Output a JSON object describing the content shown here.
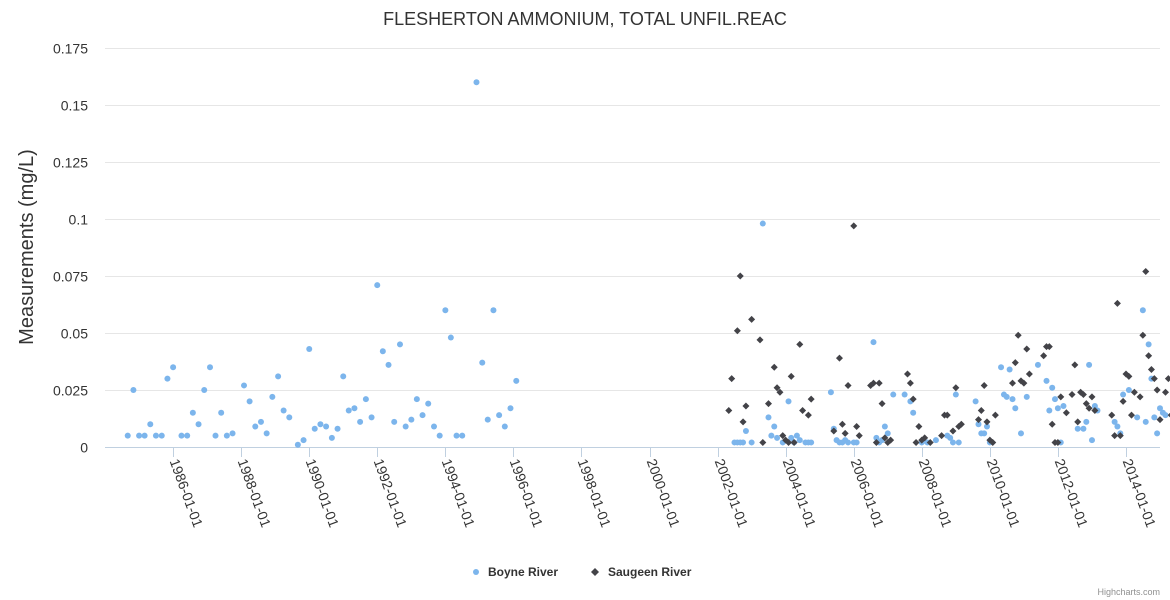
{
  "chart_data": {
    "type": "scatter",
    "title": "FLESHERTON AMMONIUM, TOTAL UNFIL.REAC",
    "ylabel": "Measurements (mg/L)",
    "xlabel": "",
    "x_type": "date",
    "xlim": [
      "1984-01-01",
      "2015-01-01"
    ],
    "ylim": [
      0,
      0.175
    ],
    "yticks": [
      {
        "value": 0,
        "label": "0"
      },
      {
        "value": 0.025,
        "label": "0.025"
      },
      {
        "value": 0.05,
        "label": "0.05"
      },
      {
        "value": 0.075,
        "label": "0.075"
      },
      {
        "value": 0.1,
        "label": "0.1"
      },
      {
        "value": 0.125,
        "label": "0.125"
      },
      {
        "value": 0.15,
        "label": "0.15"
      },
      {
        "value": 0.175,
        "label": "0.175"
      }
    ],
    "xticks": [
      "1986-01-01",
      "1988-01-01",
      "1990-01-01",
      "1992-01-01",
      "1994-01-01",
      "1996-01-01",
      "1998-01-01",
      "2000-01-01",
      "2002-01-01",
      "2004-01-01",
      "2006-01-01",
      "2008-01-01",
      "2010-01-01",
      "2012-01-01",
      "2014-01-01"
    ],
    "grid": true,
    "legend_position": "bottom-center",
    "series": [
      {
        "name": "Boyne River",
        "color": "#7cb5ec",
        "marker": "circle",
        "points": [
          [
            "1984-09-01",
            0.005
          ],
          [
            "1984-11-01",
            0.025
          ],
          [
            "1985-01-01",
            0.005
          ],
          [
            "1985-03-01",
            0.005
          ],
          [
            "1985-05-01",
            0.01
          ],
          [
            "1985-07-01",
            0.005
          ],
          [
            "1985-09-01",
            0.005
          ],
          [
            "1985-11-01",
            0.03
          ],
          [
            "1986-01-01",
            0.035
          ],
          [
            "1986-04-01",
            0.005
          ],
          [
            "1986-06-01",
            0.005
          ],
          [
            "1986-08-01",
            0.015
          ],
          [
            "1986-10-01",
            0.01
          ],
          [
            "1986-12-01",
            0.025
          ],
          [
            "1987-02-01",
            0.035
          ],
          [
            "1987-04-01",
            0.005
          ],
          [
            "1987-06-01",
            0.015
          ],
          [
            "1987-08-01",
            0.005
          ],
          [
            "1987-10-01",
            0.006
          ],
          [
            "1988-02-01",
            0.027
          ],
          [
            "1988-04-01",
            0.02
          ],
          [
            "1988-06-01",
            0.009
          ],
          [
            "1988-08-01",
            0.011
          ],
          [
            "1988-10-01",
            0.006
          ],
          [
            "1988-12-01",
            0.022
          ],
          [
            "1989-02-01",
            0.031
          ],
          [
            "1989-04-01",
            0.016
          ],
          [
            "1989-06-01",
            0.013
          ],
          [
            "1989-09-01",
            0.001
          ],
          [
            "1989-11-01",
            0.003
          ],
          [
            "1990-01-01",
            0.043
          ],
          [
            "1990-03-01",
            0.008
          ],
          [
            "1990-05-01",
            0.01
          ],
          [
            "1990-07-01",
            0.009
          ],
          [
            "1990-09-01",
            0.004
          ],
          [
            "1990-11-01",
            0.008
          ],
          [
            "1991-01-01",
            0.031
          ],
          [
            "1991-03-01",
            0.016
          ],
          [
            "1991-05-01",
            0.017
          ],
          [
            "1991-07-01",
            0.011
          ],
          [
            "1991-09-01",
            0.021
          ],
          [
            "1991-11-01",
            0.013
          ],
          [
            "1992-01-01",
            0.071
          ],
          [
            "1992-03-01",
            0.042
          ],
          [
            "1992-05-01",
            0.036
          ],
          [
            "1992-07-01",
            0.011
          ],
          [
            "1992-09-01",
            0.045
          ],
          [
            "1992-11-01",
            0.009
          ],
          [
            "1993-01-01",
            0.012
          ],
          [
            "1993-03-01",
            0.021
          ],
          [
            "1993-05-01",
            0.014
          ],
          [
            "1993-07-01",
            0.019
          ],
          [
            "1993-09-01",
            0.009
          ],
          [
            "1993-11-01",
            0.005
          ],
          [
            "1994-01-01",
            0.06
          ],
          [
            "1994-03-01",
            0.048
          ],
          [
            "1994-05-01",
            0.005
          ],
          [
            "1994-07-01",
            0.005
          ],
          [
            "1994-12-01",
            0.16
          ],
          [
            "1995-02-01",
            0.037
          ],
          [
            "1995-04-01",
            0.012
          ],
          [
            "1995-06-01",
            0.06
          ],
          [
            "1995-08-01",
            0.014
          ],
          [
            "1995-10-01",
            0.009
          ],
          [
            "1995-12-01",
            0.017
          ],
          [
            "1996-02-01",
            0.029
          ],
          [
            "2002-07-01",
            0.002
          ],
          [
            "2002-08-01",
            0.002
          ],
          [
            "2002-09-01",
            0.002
          ],
          [
            "2002-10-01",
            0.002
          ],
          [
            "2002-11-01",
            0.007
          ],
          [
            "2003-01-01",
            0.002
          ],
          [
            "2003-05-01",
            0.098
          ],
          [
            "2003-07-01",
            0.013
          ],
          [
            "2003-08-01",
            0.005
          ],
          [
            "2003-09-01",
            0.009
          ],
          [
            "2003-10-01",
            0.004
          ],
          [
            "2003-12-01",
            0.002
          ],
          [
            "2004-02-01",
            0.02
          ],
          [
            "2004-03-01",
            0.004
          ],
          [
            "2004-04-01",
            0.002
          ],
          [
            "2004-05-01",
            0.005
          ],
          [
            "2004-06-01",
            0.003
          ],
          [
            "2004-08-01",
            0.002
          ],
          [
            "2004-09-01",
            0.002
          ],
          [
            "2004-10-01",
            0.002
          ],
          [
            "2005-05-01",
            0.024
          ],
          [
            "2005-06-01",
            0.008
          ],
          [
            "2005-07-01",
            0.003
          ],
          [
            "2005-08-01",
            0.002
          ],
          [
            "2005-09-01",
            0.002
          ],
          [
            "2005-10-01",
            0.003
          ],
          [
            "2005-11-01",
            0.002
          ],
          [
            "2006-01-01",
            0.002
          ],
          [
            "2006-02-01",
            0.002
          ],
          [
            "2006-08-01",
            0.046
          ],
          [
            "2006-09-01",
            0.004
          ],
          [
            "2006-10-01",
            0.002
          ],
          [
            "2006-11-01",
            0.003
          ],
          [
            "2006-12-01",
            0.009
          ],
          [
            "2007-01-01",
            0.006
          ],
          [
            "2007-03-01",
            0.023
          ],
          [
            "2007-07-01",
            0.023
          ],
          [
            "2007-09-01",
            0.02
          ],
          [
            "2007-10-01",
            0.015
          ],
          [
            "2008-01-01",
            0.002
          ],
          [
            "2008-03-01",
            0.002
          ],
          [
            "2008-06-01",
            0.003
          ],
          [
            "2008-10-01",
            0.005
          ],
          [
            "2008-11-01",
            0.004
          ],
          [
            "2008-12-01",
            0.002
          ],
          [
            "2009-01-01",
            0.023
          ],
          [
            "2009-02-01",
            0.002
          ],
          [
            "2009-08-01",
            0.02
          ],
          [
            "2009-09-01",
            0.01
          ],
          [
            "2009-10-01",
            0.006
          ],
          [
            "2009-11-01",
            0.006
          ],
          [
            "2009-12-01",
            0.009
          ],
          [
            "2010-01-01",
            0.002
          ],
          [
            "2010-05-01",
            0.035
          ],
          [
            "2010-06-01",
            0.023
          ],
          [
            "2010-07-01",
            0.022
          ],
          [
            "2010-08-01",
            0.034
          ],
          [
            "2010-09-01",
            0.021
          ],
          [
            "2010-10-01",
            0.017
          ],
          [
            "2010-12-01",
            0.006
          ],
          [
            "2011-02-01",
            0.022
          ],
          [
            "2011-06-01",
            0.036
          ],
          [
            "2011-09-01",
            0.029
          ],
          [
            "2011-10-01",
            0.016
          ],
          [
            "2011-11-01",
            0.026
          ],
          [
            "2011-12-01",
            0.021
          ],
          [
            "2012-01-01",
            0.017
          ],
          [
            "2012-02-01",
            0.002
          ],
          [
            "2012-03-01",
            0.018
          ],
          [
            "2012-08-01",
            0.008
          ],
          [
            "2012-10-01",
            0.008
          ],
          [
            "2012-11-01",
            0.011
          ],
          [
            "2012-12-01",
            0.036
          ],
          [
            "2013-01-01",
            0.003
          ],
          [
            "2013-02-01",
            0.018
          ],
          [
            "2013-03-01",
            0.016
          ],
          [
            "2013-09-01",
            0.011
          ],
          [
            "2013-10-01",
            0.009
          ],
          [
            "2013-11-01",
            0.006
          ],
          [
            "2013-12-01",
            0.023
          ],
          [
            "2014-02-01",
            0.025
          ],
          [
            "2014-05-01",
            0.013
          ],
          [
            "2014-07-01",
            0.06
          ],
          [
            "2014-08-01",
            0.011
          ],
          [
            "2014-09-01",
            0.045
          ],
          [
            "2014-10-01",
            0.03
          ],
          [
            "2014-11-01",
            0.013
          ],
          [
            "2014-12-01",
            0.006
          ],
          [
            "2015-01-01",
            0.017
          ],
          [
            "2015-02-01",
            0.015
          ],
          [
            "2015-03-01",
            0.014
          ]
        ]
      },
      {
        "name": "Saugeen River",
        "color": "#434348",
        "marker": "diamond",
        "points": [
          [
            "2002-05-01",
            0.016
          ],
          [
            "2002-06-01",
            0.03
          ],
          [
            "2002-08-01",
            0.051
          ],
          [
            "2002-09-01",
            0.075
          ],
          [
            "2002-10-01",
            0.011
          ],
          [
            "2002-11-01",
            0.018
          ],
          [
            "2003-01-01",
            0.056
          ],
          [
            "2003-04-01",
            0.047
          ],
          [
            "2003-05-01",
            0.002
          ],
          [
            "2003-07-01",
            0.019
          ],
          [
            "2003-09-01",
            0.035
          ],
          [
            "2003-10-01",
            0.026
          ],
          [
            "2003-11-01",
            0.024
          ],
          [
            "2003-12-01",
            0.005
          ],
          [
            "2004-01-01",
            0.003
          ],
          [
            "2004-02-01",
            0.002
          ],
          [
            "2004-03-01",
            0.031
          ],
          [
            "2004-04-01",
            0.002
          ],
          [
            "2004-06-01",
            0.045
          ],
          [
            "2004-07-01",
            0.016
          ],
          [
            "2004-09-01",
            0.014
          ],
          [
            "2004-10-01",
            0.021
          ],
          [
            "2005-06-01",
            0.007
          ],
          [
            "2005-08-01",
            0.039
          ],
          [
            "2005-09-01",
            0.01
          ],
          [
            "2005-10-01",
            0.006
          ],
          [
            "2005-11-01",
            0.027
          ],
          [
            "2006-01-01",
            0.097
          ],
          [
            "2006-02-01",
            0.009
          ],
          [
            "2006-03-01",
            0.005
          ],
          [
            "2006-07-01",
            0.027
          ],
          [
            "2006-08-01",
            0.028
          ],
          [
            "2006-09-01",
            0.002
          ],
          [
            "2006-10-01",
            0.028
          ],
          [
            "2006-11-01",
            0.019
          ],
          [
            "2006-12-01",
            0.004
          ],
          [
            "2007-01-01",
            0.002
          ],
          [
            "2007-02-01",
            0.003
          ],
          [
            "2007-08-01",
            0.032
          ],
          [
            "2007-09-01",
            0.028
          ],
          [
            "2007-10-01",
            0.021
          ],
          [
            "2007-11-01",
            0.002
          ],
          [
            "2007-12-01",
            0.009
          ],
          [
            "2008-01-01",
            0.003
          ],
          [
            "2008-02-01",
            0.004
          ],
          [
            "2008-04-01",
            0.002
          ],
          [
            "2008-08-01",
            0.005
          ],
          [
            "2008-09-01",
            0.014
          ],
          [
            "2008-10-01",
            0.014
          ],
          [
            "2008-12-01",
            0.007
          ],
          [
            "2009-01-01",
            0.026
          ],
          [
            "2009-02-01",
            0.009
          ],
          [
            "2009-03-01",
            0.01
          ],
          [
            "2009-09-01",
            0.012
          ],
          [
            "2009-10-01",
            0.016
          ],
          [
            "2009-11-01",
            0.027
          ],
          [
            "2009-12-01",
            0.011
          ],
          [
            "2010-01-01",
            0.003
          ],
          [
            "2010-02-01",
            0.002
          ],
          [
            "2010-03-01",
            0.014
          ],
          [
            "2010-09-01",
            0.028
          ],
          [
            "2010-10-01",
            0.037
          ],
          [
            "2010-11-01",
            0.049
          ],
          [
            "2010-12-01",
            0.029
          ],
          [
            "2011-01-01",
            0.028
          ],
          [
            "2011-02-01",
            0.043
          ],
          [
            "2011-03-01",
            0.032
          ],
          [
            "2011-08-01",
            0.04
          ],
          [
            "2011-09-01",
            0.044
          ],
          [
            "2011-10-01",
            0.044
          ],
          [
            "2011-11-01",
            0.01
          ],
          [
            "2011-12-01",
            0.002
          ],
          [
            "2012-01-01",
            0.002
          ],
          [
            "2012-02-01",
            0.022
          ],
          [
            "2012-04-01",
            0.015
          ],
          [
            "2012-06-01",
            0.023
          ],
          [
            "2012-07-01",
            0.036
          ],
          [
            "2012-08-01",
            0.011
          ],
          [
            "2012-09-01",
            0.024
          ],
          [
            "2012-10-01",
            0.023
          ],
          [
            "2012-11-01",
            0.019
          ],
          [
            "2012-12-01",
            0.017
          ],
          [
            "2013-01-01",
            0.022
          ],
          [
            "2013-02-01",
            0.016
          ],
          [
            "2013-08-01",
            0.014
          ],
          [
            "2013-09-01",
            0.005
          ],
          [
            "2013-10-01",
            0.063
          ],
          [
            "2013-11-01",
            0.005
          ],
          [
            "2013-12-01",
            0.02
          ],
          [
            "2014-01-01",
            0.032
          ],
          [
            "2014-02-01",
            0.031
          ],
          [
            "2014-03-01",
            0.014
          ],
          [
            "2014-04-01",
            0.024
          ],
          [
            "2014-06-01",
            0.022
          ],
          [
            "2014-07-01",
            0.049
          ],
          [
            "2014-08-01",
            0.077
          ],
          [
            "2014-09-01",
            0.04
          ],
          [
            "2014-10-01",
            0.034
          ],
          [
            "2014-11-01",
            0.03
          ],
          [
            "2014-12-01",
            0.025
          ],
          [
            "2015-01-01",
            0.012
          ],
          [
            "2015-03-01",
            0.024
          ],
          [
            "2015-04-01",
            0.03
          ],
          [
            "2015-05-01",
            0.014
          ]
        ]
      }
    ]
  },
  "credits": "Highcharts.com"
}
